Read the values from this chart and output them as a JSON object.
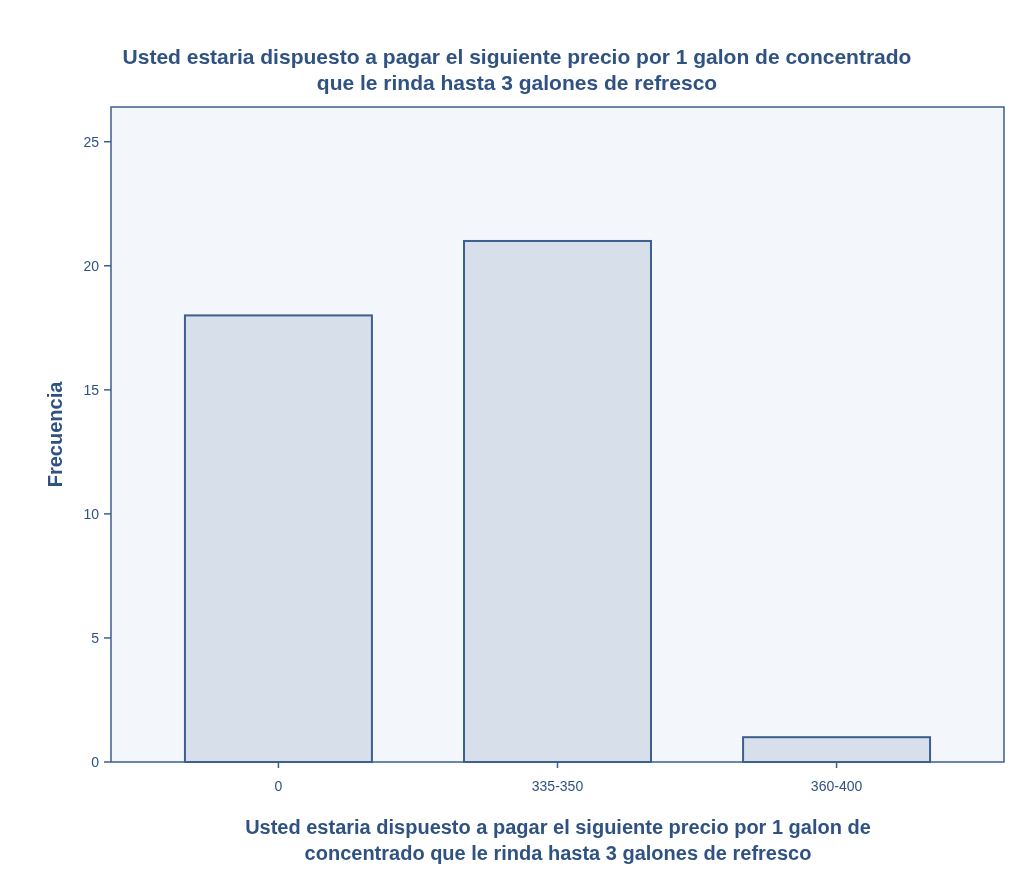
{
  "chart_data": {
    "type": "bar",
    "title": "Usted estaria dispuesto a pagar el siguiente precio por 1 galon de concentrado que le rinda hasta 3 galones de refresco",
    "xlabel": "Usted estaria dispuesto a pagar el siguiente precio por 1 galon de concentrado que le rinda hasta 3 galones de refresco",
    "ylabel": "Frecuencia",
    "categories": [
      "0",
      "335-350",
      "360-400"
    ],
    "values": [
      18,
      21,
      1
    ],
    "color": "#d6dfea",
    "ylim": [
      0,
      26.4
    ],
    "yticks": [
      0,
      5,
      10,
      15,
      20,
      25
    ],
    "grid": false
  }
}
